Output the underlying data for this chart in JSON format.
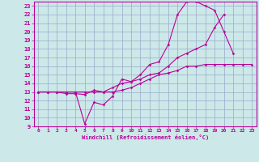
{
  "background_color": "#cce8e8",
  "grid_color": "#99aacc",
  "line_color": "#bb0099",
  "xlabel": "Windchill (Refroidissement éolien,°C)",
  "xlim": [
    -0.5,
    23.5
  ],
  "ylim": [
    9,
    23.5
  ],
  "xticks": [
    0,
    1,
    2,
    3,
    4,
    5,
    6,
    7,
    8,
    9,
    10,
    11,
    12,
    13,
    14,
    15,
    16,
    17,
    18,
    19,
    20,
    21,
    22,
    23
  ],
  "yticks": [
    9,
    10,
    11,
    12,
    13,
    14,
    15,
    16,
    17,
    18,
    19,
    20,
    21,
    22,
    23
  ],
  "series": [
    {
      "x": [
        0,
        1,
        2,
        3,
        4,
        5,
        6,
        7,
        8,
        9,
        10,
        11,
        12,
        13,
        14,
        15,
        16,
        17,
        18,
        19,
        20,
        21
      ],
      "y": [
        13,
        13,
        13,
        13,
        13,
        9.3,
        11.8,
        11.5,
        12.5,
        14.5,
        14.2,
        15.0,
        16.2,
        16.5,
        18.5,
        22.0,
        23.5,
        23.5,
        23.0,
        22.5,
        20.0,
        17.5
      ]
    },
    {
      "x": [
        0,
        1,
        2,
        3,
        4,
        5,
        6,
        7,
        8,
        9,
        10,
        11,
        12,
        13,
        14,
        15,
        16,
        17,
        18,
        19,
        20
      ],
      "y": [
        13,
        13,
        13,
        13,
        13,
        13,
        13,
        13,
        13.5,
        14.0,
        14.2,
        14.5,
        15.0,
        15.2,
        16.0,
        17.0,
        17.5,
        18.0,
        18.5,
        20.5,
        22.0
      ]
    },
    {
      "x": [
        0,
        1,
        2,
        3,
        4,
        5,
        6,
        7,
        8,
        9,
        10,
        11,
        12,
        13,
        14,
        15,
        16,
        17,
        18,
        19,
        20,
        21,
        22,
        23
      ],
      "y": [
        13,
        13,
        13,
        12.8,
        12.8,
        12.7,
        13.2,
        13.0,
        13.0,
        13.2,
        13.5,
        14.0,
        14.5,
        15.0,
        15.2,
        15.5,
        16.0,
        16.0,
        16.2,
        16.2,
        16.2,
        16.2,
        16.2,
        16.2
      ]
    }
  ]
}
